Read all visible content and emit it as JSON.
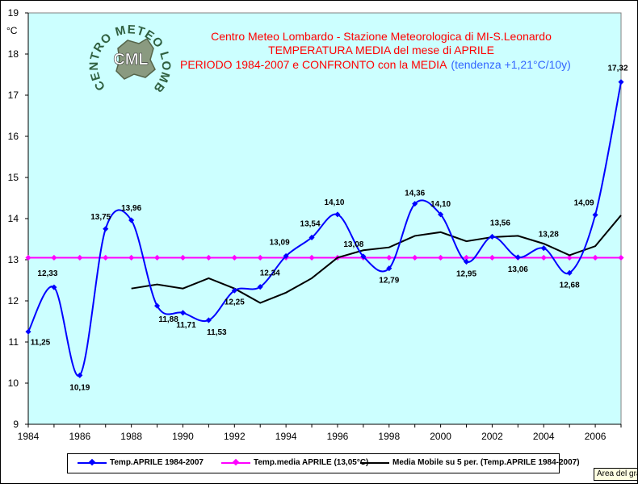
{
  "chart_data": {
    "type": "line",
    "title_lines": [
      "Centro Meteo Lombardo - Stazione Meteorologica di MI-S.Leonardo",
      "TEMPERATURA MEDIA del mese di APRILE",
      "PERIODO 1984-2007 e CONFRONTO con la MEDIA"
    ],
    "trend_note": "(tendenza +1,21°C/10y)",
    "ylabel": "°C",
    "xlabel": "",
    "ylim": [
      9,
      19
    ],
    "xlim": [
      1984,
      2007
    ],
    "y_ticks": [
      9,
      10,
      11,
      12,
      13,
      14,
      15,
      16,
      17,
      18,
      19
    ],
    "x_ticks": [
      1984,
      1986,
      1988,
      1990,
      1992,
      1994,
      1996,
      1998,
      2000,
      2002,
      2004,
      2006
    ],
    "grid": false,
    "legend_placement": "bottom",
    "series": [
      {
        "name": "Temp.APRILE 1984-2007",
        "color": "#0000ff",
        "marker": "diamond",
        "x": [
          1984,
          1985,
          1986,
          1987,
          1988,
          1989,
          1990,
          1991,
          1992,
          1993,
          1994,
          1995,
          1996,
          1997,
          1998,
          1999,
          2000,
          2001,
          2002,
          2003,
          2004,
          2005,
          2006,
          2007
        ],
        "values": [
          11.25,
          12.33,
          10.19,
          13.75,
          13.96,
          11.88,
          11.71,
          11.53,
          12.25,
          12.34,
          13.09,
          13.54,
          14.1,
          13.08,
          12.79,
          14.36,
          14.1,
          12.95,
          13.56,
          13.06,
          13.28,
          12.68,
          14.09,
          17.32
        ],
        "labels": [
          "11,25",
          "12,33",
          "10,19",
          "13,75",
          "13,96",
          "11,88",
          "11,71",
          "11,53",
          "12,25",
          "12,34",
          "13,09",
          "13,54",
          "14,10",
          "13,08",
          "12,79",
          "14,36",
          "14,10",
          "12,95",
          "13,56",
          "13,06",
          "13,28",
          "12,68",
          "14,09",
          "17,32"
        ]
      },
      {
        "name": "Temp.media APRILE (13,05°C)",
        "color": "#ff00ff",
        "marker": "diamond",
        "x": [
          1984,
          1985,
          1986,
          1987,
          1988,
          1989,
          1990,
          1991,
          1992,
          1993,
          1994,
          1995,
          1996,
          1997,
          1998,
          1999,
          2000,
          2001,
          2002,
          2003,
          2004,
          2005,
          2006,
          2007
        ],
        "values": [
          13.05,
          13.05,
          13.05,
          13.05,
          13.05,
          13.05,
          13.05,
          13.05,
          13.05,
          13.05,
          13.05,
          13.05,
          13.05,
          13.05,
          13.05,
          13.05,
          13.05,
          13.05,
          13.05,
          13.05,
          13.05,
          13.05,
          13.05,
          13.05
        ]
      },
      {
        "name": "Media Mobile su 5 per. (Temp.APRILE 1984-2007)",
        "color": "#000000",
        "marker": "none",
        "x": [
          1988,
          1989,
          1990,
          1991,
          1992,
          1993,
          1994,
          1995,
          1996,
          1997,
          1998,
          1999,
          2000,
          2001,
          2002,
          2003,
          2004,
          2005,
          2006,
          2007
        ],
        "values": [
          12.3,
          12.4,
          12.3,
          12.55,
          12.3,
          11.95,
          12.2,
          12.55,
          13.05,
          13.23,
          13.3,
          13.58,
          13.67,
          13.45,
          13.55,
          13.58,
          13.39,
          13.11,
          13.33,
          14.08
        ]
      }
    ]
  },
  "logo": {
    "ring_text": "CENTRO METEO LOMBARDO",
    "center_text": "CML"
  },
  "tooltip": "Area del grafico",
  "colors": {
    "plot_bg": "#ccffff",
    "title_red": "#ff0000",
    "trend_blue": "#3366ff"
  }
}
